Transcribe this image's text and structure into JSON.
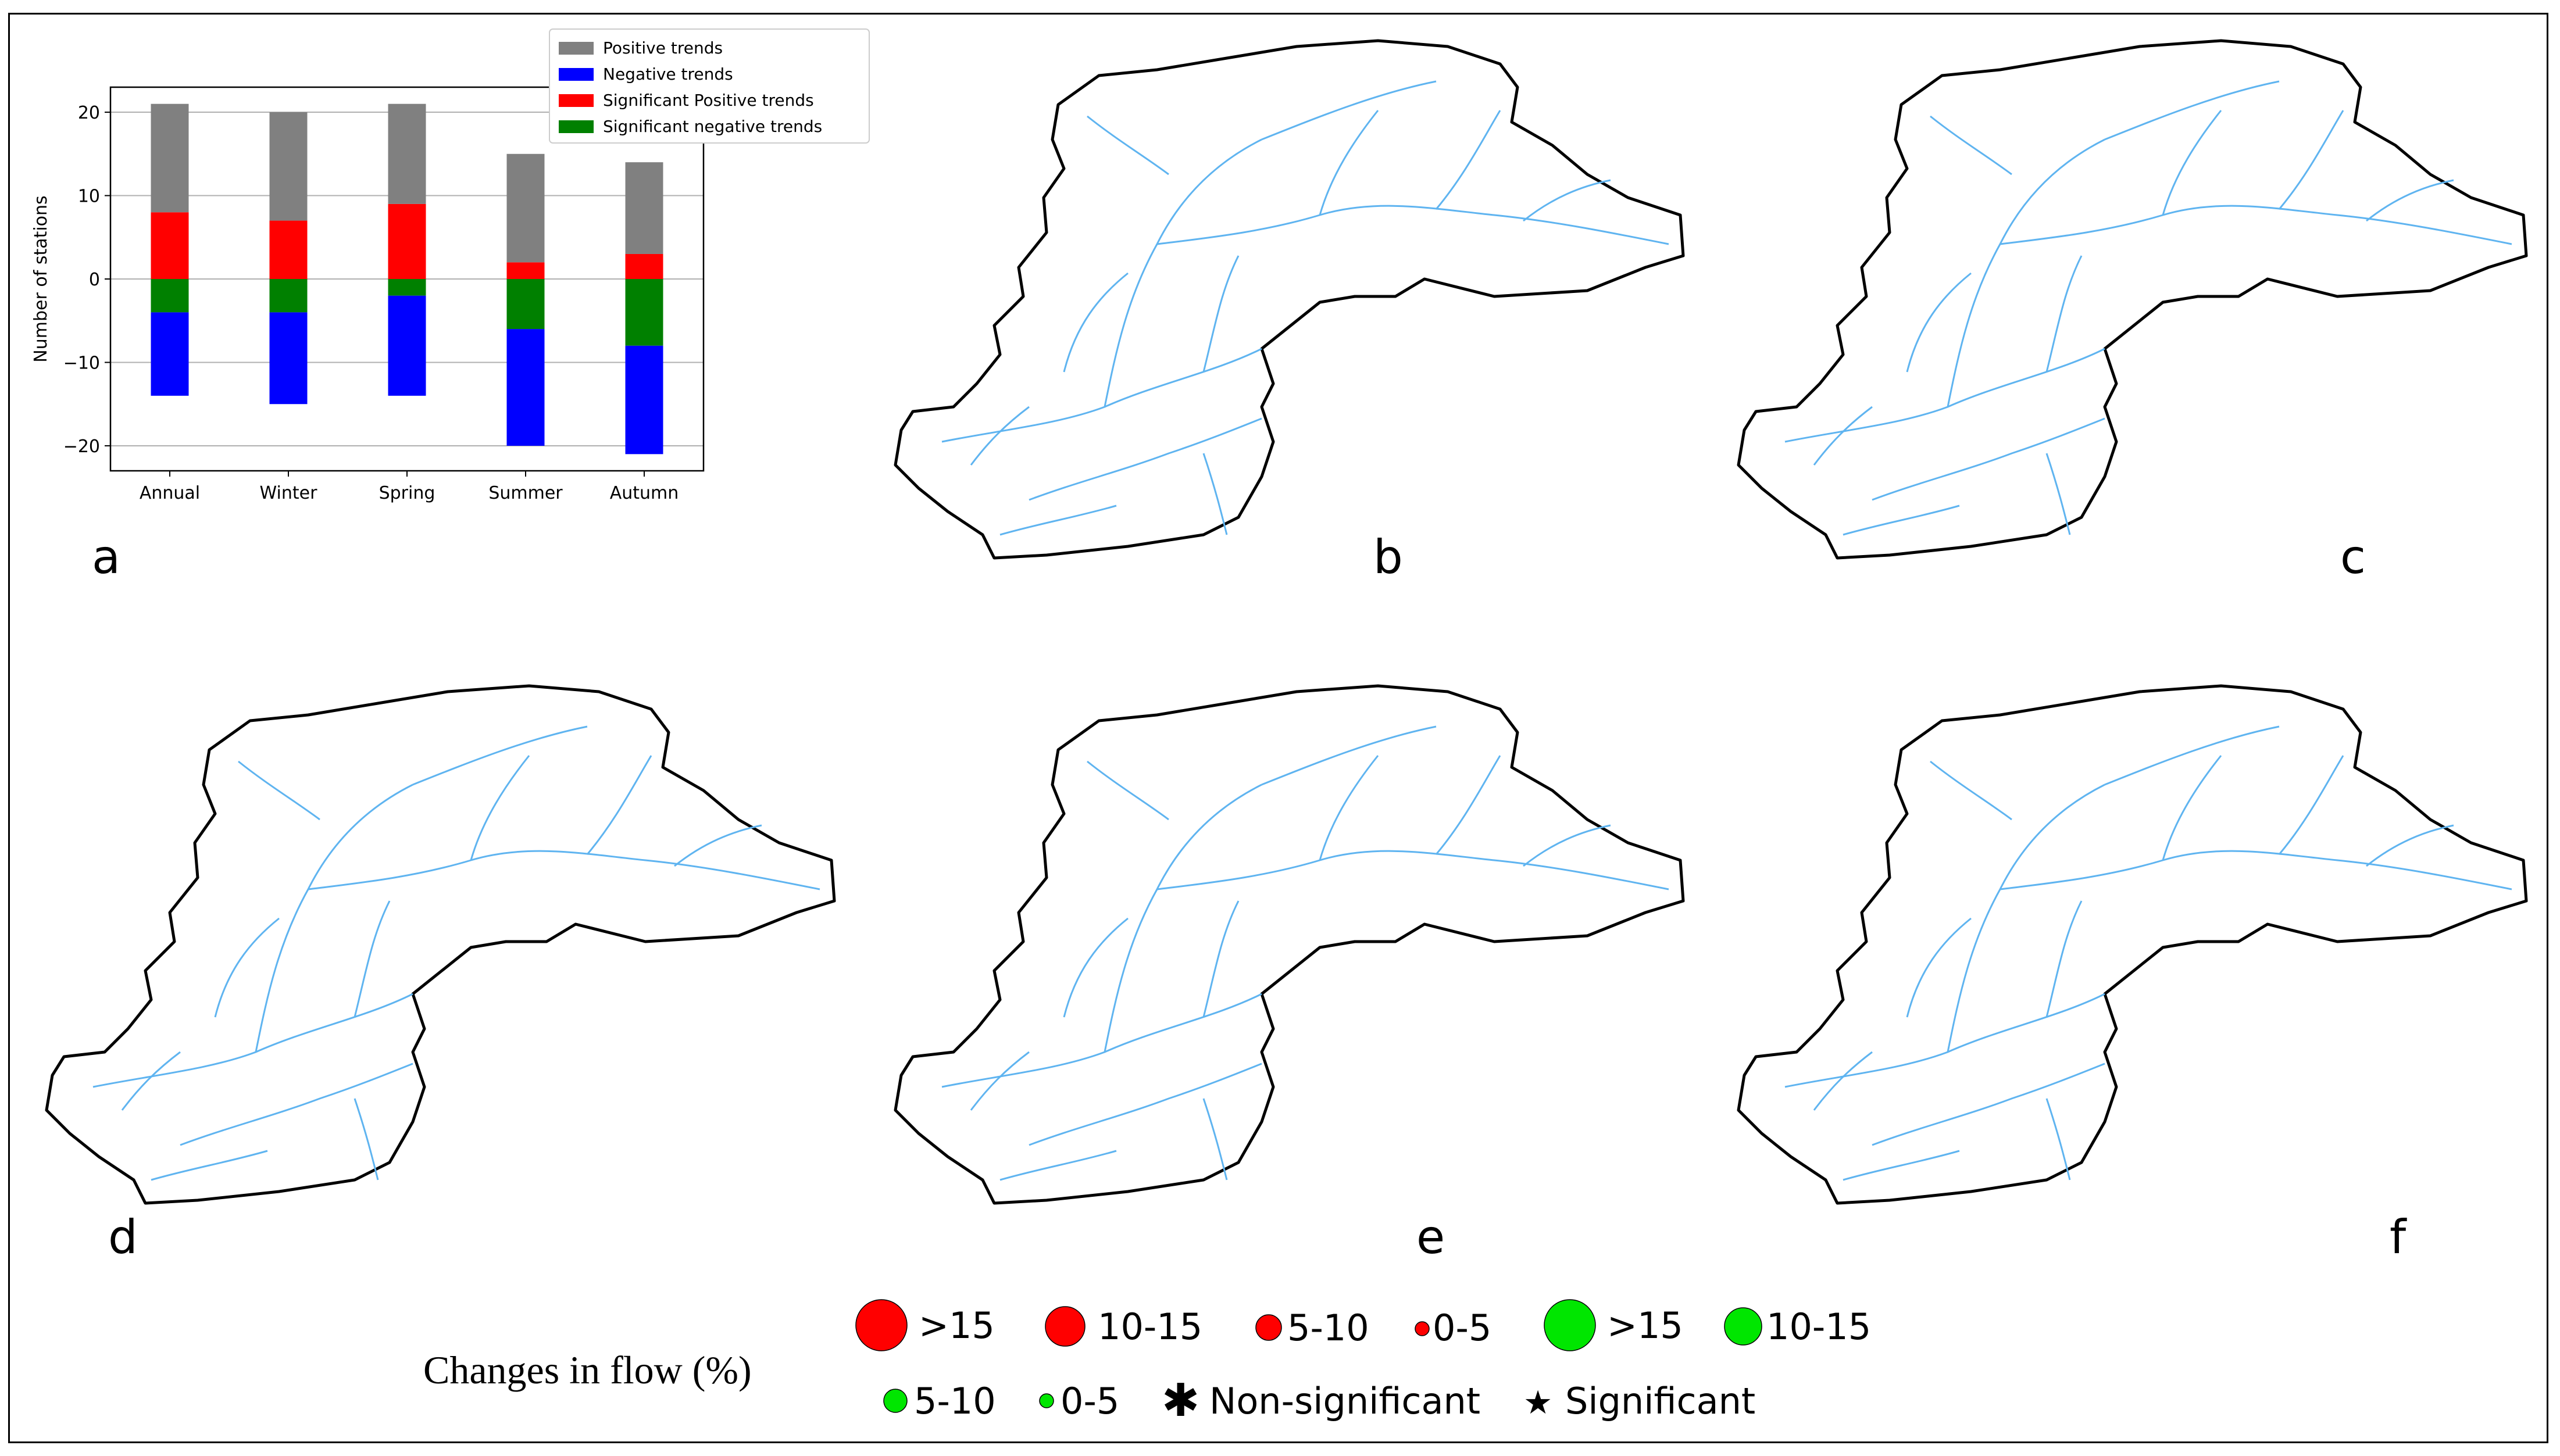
{
  "chart_data": {
    "type": "bar",
    "stacked": true,
    "categories": [
      "Annual",
      "Winter",
      "Spring",
      "Summer",
      "Autumn"
    ],
    "ylabel": "Number  of stations",
    "xlabel": "",
    "ylim": [
      -23,
      23
    ],
    "yticks": [
      20,
      10,
      0,
      -10,
      -20
    ],
    "ytick_labels": [
      "20",
      "10",
      "0",
      "−10",
      "−20"
    ],
    "grid": true,
    "legend_position": "top-right",
    "positive_stack": [
      {
        "name": "Significant Positive trends",
        "color": "#ff0000",
        "values": [
          8,
          7,
          9,
          2,
          3
        ]
      },
      {
        "name": "Positive trends",
        "color": "#808080",
        "values": [
          13,
          13,
          12,
          13,
          11
        ]
      }
    ],
    "negative_stack": [
      {
        "name": "Significant negative trends",
        "color": "#008000",
        "values": [
          -4,
          -4,
          -2,
          -6,
          -8
        ]
      },
      {
        "name": "Negative trends",
        "color": "#0000ff",
        "values": [
          -10,
          -11,
          -12,
          -14,
          -13
        ]
      }
    ],
    "legend_order": [
      "Positive trends",
      "Negative trends",
      "Significant Positive trends",
      "Significant negative trends"
    ]
  },
  "panels": {
    "a": "a",
    "b": "b",
    "c": "c",
    "d": "d",
    "e": "e",
    "f": "f"
  },
  "map_legend": {
    "title": "Changes in flow (%)",
    "pos_15": ">15",
    "pos_10_15": "10-15",
    "pos_5_10": "5-10",
    "pos_0_5": "0-5",
    "neg_15": ">15",
    "neg_10_15": "10-15",
    "neg_5_10": "5-10",
    "neg_0_5": "0-5",
    "non_significant": "Non-significant",
    "significant": "Significant"
  },
  "colors": {
    "positive_change": "#ff0000",
    "negative_change": "#00e600",
    "river": "#5fb4f0",
    "basin_outline": "#000000"
  }
}
